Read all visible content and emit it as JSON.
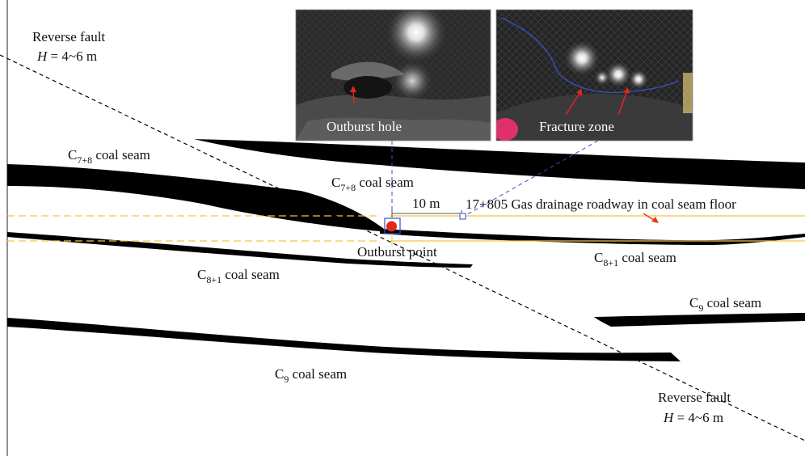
{
  "fault_top": {
    "title": "Reverse fault",
    "value": "H = 4~6 m",
    "var": "H",
    "rest": " = 4~6 m"
  },
  "fault_bottom": {
    "title": "Reverse fault",
    "value": "H = 4~6 m",
    "var": "H",
    "rest": " = 4~6 m"
  },
  "photos": {
    "left": {
      "label": "Outburst hole"
    },
    "right": {
      "label": "Fracture zone"
    }
  },
  "seams": {
    "c78_left": {
      "base": "C",
      "sub": "7+8",
      "rest": " coal seam"
    },
    "c78_mid": {
      "base": "C",
      "sub": "7+8",
      "rest": " coal seam"
    },
    "c81_left": {
      "base": "C",
      "sub": "8+1",
      "rest": " coal seam"
    },
    "c81_right": {
      "base": "C",
      "sub": "8+1",
      "rest": " coal seam"
    },
    "c9_right": {
      "base": "C",
      "sub": "9",
      "rest": " coal seam"
    },
    "c9_bottom": {
      "base": "C",
      "sub": "9",
      "rest": " coal seam"
    }
  },
  "distance_label": "10 m",
  "roadway_label": "17+805 Gas drainage roadway in coal seam floor",
  "outburst_point_label": "Outburst point",
  "colors": {
    "seam": "#000000",
    "roadway": "#f5c445",
    "roadway_dashed": "#f5c445",
    "outburst": "#e0281e",
    "leader": "#3a4ec8",
    "arrow": "#e03a1e"
  }
}
